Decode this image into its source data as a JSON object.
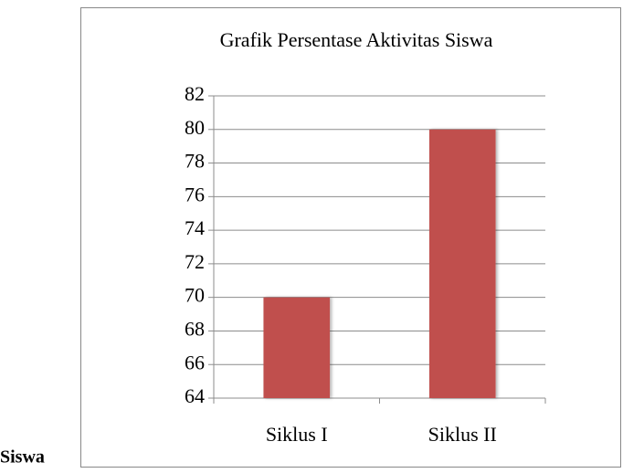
{
  "chart_data": {
    "type": "bar",
    "title": "Grafik Persentase Aktivitas Siswa",
    "categories": [
      "Siklus I",
      "Siklus II"
    ],
    "values": [
      70,
      80
    ],
    "color": "#c0504d",
    "ylim": [
      64,
      82
    ],
    "yticks": [
      64,
      66,
      68,
      70,
      72,
      74,
      76,
      78,
      80,
      82
    ],
    "grid": true
  },
  "page_text": "Siswa"
}
